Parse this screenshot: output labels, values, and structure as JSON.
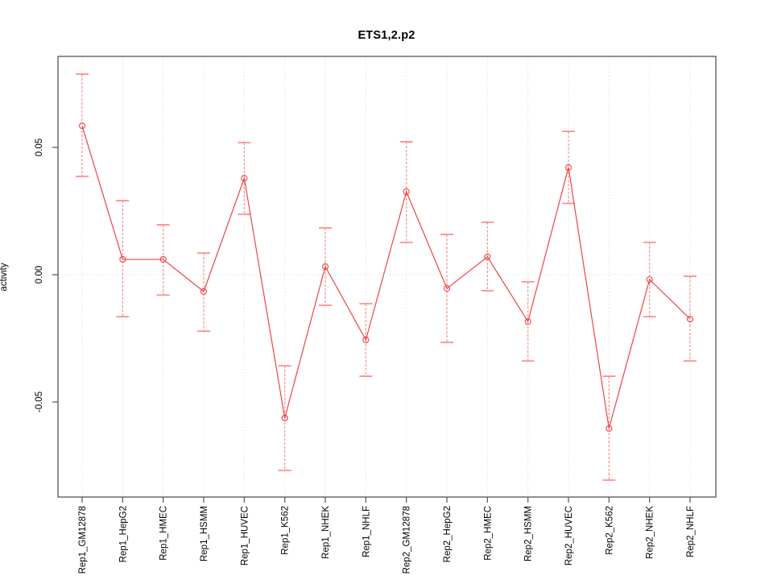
{
  "chart_data": {
    "type": "line",
    "title": "ETS1,2.p2",
    "xlabel": "",
    "ylabel": "activity",
    "legend_position": "none",
    "grid": "dotted vertical gridline at every category; dotted horizontal line at y=0",
    "marker": "open-circle",
    "error_bars": true,
    "categories": [
      "Rep1_GM12878",
      "Rep1_HepG2",
      "Rep1_HMEC",
      "Rep1_HSMM",
      "Rep1_HUVEC",
      "Rep1_K562",
      "Rep1_NHEK",
      "Rep1_NHLF",
      "Rep2_GM12878",
      "Rep2_HepG2",
      "Rep2_HMEC",
      "Rep2_HSMM",
      "Rep2_HUVEC",
      "Rep2_K562",
      "Rep2_NHEK",
      "Rep2_NHLF"
    ],
    "series": [
      {
        "name": "activity",
        "values": [
          0.0585,
          0.006,
          0.006,
          -0.0066,
          0.0379,
          -0.0563,
          0.0032,
          -0.0256,
          0.0326,
          -0.0054,
          0.007,
          -0.0184,
          0.0421,
          -0.0604,
          -0.0019,
          -0.0174
        ],
        "error_upper": [
          0.0788,
          0.0291,
          0.0196,
          0.0085,
          0.0519,
          -0.0358,
          0.0184,
          -0.0114,
          0.0522,
          0.0158,
          0.0206,
          -0.0028,
          0.0563,
          -0.0399,
          0.0127,
          -0.0006
        ],
        "error_lower": [
          0.0386,
          -0.0165,
          -0.008,
          -0.0222,
          0.0237,
          -0.0769,
          -0.012,
          -0.0399,
          0.0127,
          -0.0266,
          -0.0063,
          -0.0339,
          0.028,
          -0.0807,
          -0.0165,
          -0.0339
        ]
      }
    ],
    "yticks": [
      0.05,
      0.0,
      -0.05
    ],
    "ytick_labels": [
      "0.05",
      "0.00",
      "-0.05"
    ],
    "ylim": [
      -0.0873,
      0.0857
    ],
    "colors": {
      "line": "#ee4444",
      "marker": "#ee4444",
      "error_bar": "#ff8f8f",
      "grid": "#d9d9d9",
      "axis": "#555555",
      "text": "#000000",
      "background": "#ffffff"
    }
  }
}
